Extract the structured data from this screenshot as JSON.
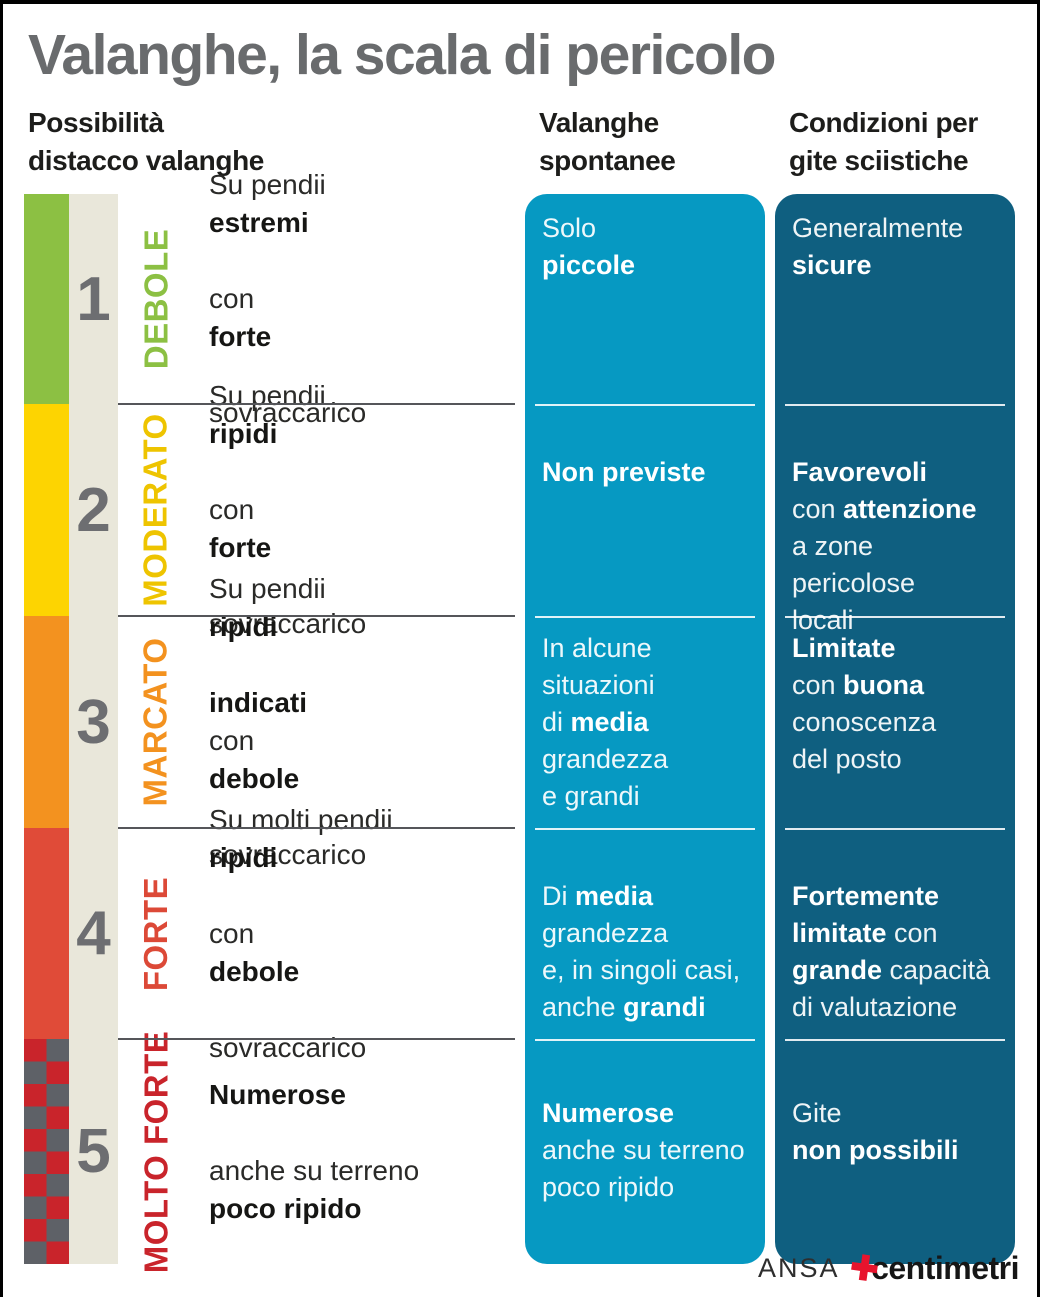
{
  "title": "Valanghe, la scala di pericolo",
  "headers": {
    "left": "Possibilità\ndistacco valanghe",
    "middle": "Valanghe\nspontanee",
    "right": "Condizioni per\ngite sciistiche"
  },
  "colors": {
    "title": "#696b6d",
    "text": "#1d1d1b",
    "middle_column": "#0699c2",
    "right_column": "#0f5f80",
    "number": "#6d6e71",
    "number_column_bg": "#e9e7da",
    "row_separator": "#55565a",
    "checker_red": "#c9242b",
    "checker_gray": "#5e6167"
  },
  "rows": [
    {
      "number": "1",
      "severity_label": "DEBOLE",
      "bar_color": "#8cc043",
      "label_color": "#8cc043",
      "trigger": [
        {
          "t": "Su pendii ",
          "b": false
        },
        {
          "t": "estremi",
          "b": true
        },
        {
          "t": "\ncon ",
          "b": false
        },
        {
          "t": "forte",
          "b": true
        },
        {
          "t": "\nsovraccarico",
          "b": false
        }
      ],
      "spontaneous": [
        {
          "t": "Solo\n",
          "b": false
        },
        {
          "t": "piccole",
          "b": true
        }
      ],
      "conditions": [
        {
          "t": "Generalmente\n",
          "b": false
        },
        {
          "t": "sicure",
          "b": true
        }
      ]
    },
    {
      "number": "2",
      "severity_label": "MODERATO",
      "bar_color": "#fdd401",
      "label_color": "#eec400",
      "trigger": [
        {
          "t": "Su pendii ",
          "b": false
        },
        {
          "t": "ripidi",
          "b": true
        },
        {
          "t": "\ncon ",
          "b": false
        },
        {
          "t": "forte",
          "b": true
        },
        {
          "t": "\nsovraccarico",
          "b": false
        }
      ],
      "spontaneous": [
        {
          "t": "Non previste",
          "b": true
        }
      ],
      "conditions": [
        {
          "t": "Favorevoli",
          "b": true
        },
        {
          "t": "\ncon ",
          "b": false
        },
        {
          "t": "attenzione",
          "b": true
        },
        {
          "t": "\na zone pericolose\nlocali",
          "b": false
        }
      ]
    },
    {
      "number": "3",
      "severity_label": "MARCATO",
      "bar_color": "#f3921f",
      "label_color": "#f3921f",
      "trigger": [
        {
          "t": "Su pendii ",
          "b": false
        },
        {
          "t": "ripidi",
          "b": true
        },
        {
          "t": "\n",
          "b": false
        },
        {
          "t": "indicati",
          "b": true
        },
        {
          "t": " con ",
          "b": false
        },
        {
          "t": "debole",
          "b": true
        },
        {
          "t": "\nsovraccarico",
          "b": false
        }
      ],
      "spontaneous": [
        {
          "t": "In alcune\nsituazioni\ndi ",
          "b": false
        },
        {
          "t": "media",
          "b": true
        },
        {
          "t": "\ngrandezza\ne grandi",
          "b": false
        }
      ],
      "conditions": [
        {
          "t": "Limitate",
          "b": true
        },
        {
          "t": "\ncon ",
          "b": false
        },
        {
          "t": "buona",
          "b": true
        },
        {
          "t": "\nconoscenza\ndel posto",
          "b": false
        }
      ]
    },
    {
      "number": "4",
      "severity_label": "FORTE",
      "bar_color": "#e04b38",
      "label_color": "#dc4937",
      "trigger": [
        {
          "t": "Su molti pendii ",
          "b": false
        },
        {
          "t": "ripidi",
          "b": true
        },
        {
          "t": "\ncon ",
          "b": false
        },
        {
          "t": "debole",
          "b": true
        },
        {
          "t": "\nsovraccarico",
          "b": false
        }
      ],
      "spontaneous": [
        {
          "t": "Di ",
          "b": false
        },
        {
          "t": "media",
          "b": true
        },
        {
          "t": "\ngrandezza\ne, in singoli casi,\nanche ",
          "b": false
        },
        {
          "t": "grandi",
          "b": true
        }
      ],
      "conditions": [
        {
          "t": "Fortemente\nlimitate",
          "b": true
        },
        {
          "t": " con\n",
          "b": false
        },
        {
          "t": "grande",
          "b": true
        },
        {
          "t": " capacità\ndi valutazione",
          "b": false
        }
      ]
    },
    {
      "number": "5",
      "severity_label": "MOLTO FORTE",
      "bar_color": "checker",
      "label_color": "#c9242b",
      "trigger": [
        {
          "t": "Numerose",
          "b": true
        },
        {
          "t": "\nanche su terreno\n",
          "b": false
        },
        {
          "t": "poco ripido",
          "b": true
        }
      ],
      "spontaneous": [
        {
          "t": "Numerose",
          "b": true
        },
        {
          "t": "\nanche su terreno\npoco ripido",
          "b": false
        }
      ],
      "conditions": [
        {
          "t": "Gite\n",
          "b": false
        },
        {
          "t": "non possibili",
          "b": true
        }
      ]
    }
  ],
  "footer": {
    "agency": "ANSA",
    "plus": "✚",
    "brand": "centimetri"
  }
}
